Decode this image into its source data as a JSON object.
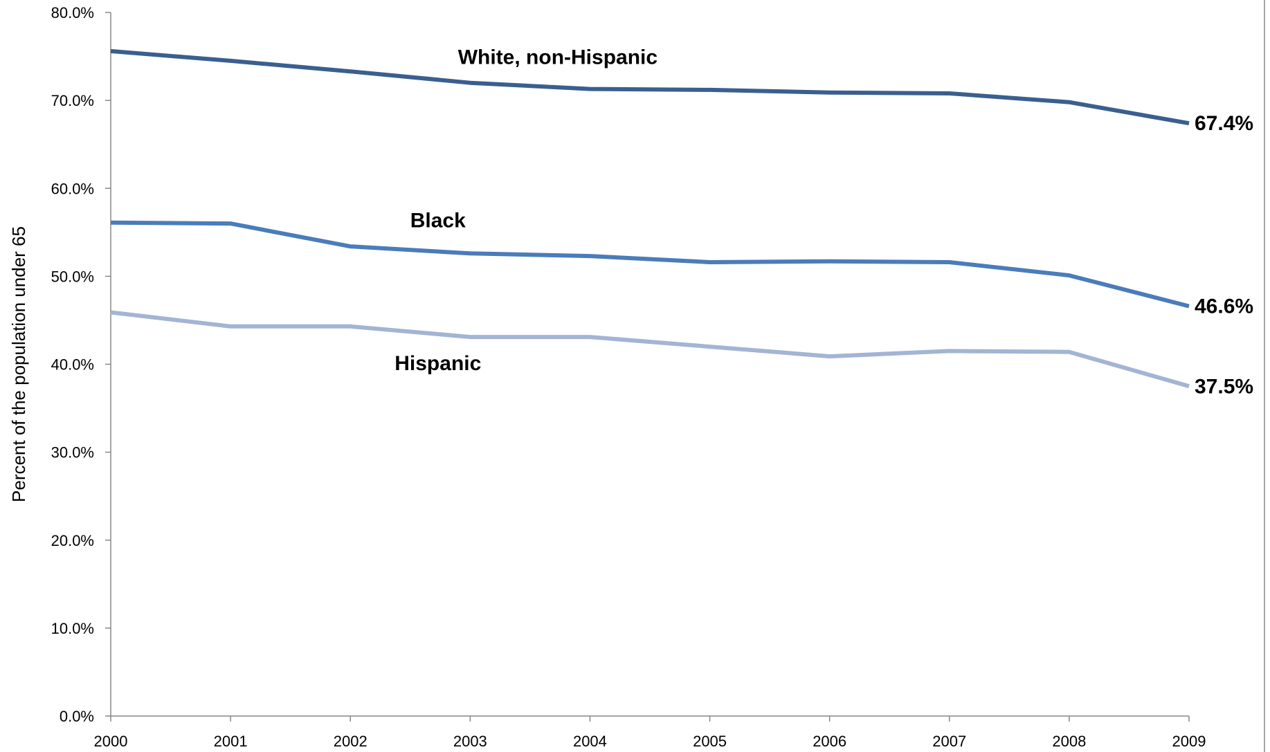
{
  "chart_data": {
    "type": "line",
    "title": "",
    "xlabel": "",
    "ylabel": "Percent of the population under 65",
    "ylim": [
      0,
      80
    ],
    "y_ticks": [
      "0.0%",
      "10.0%",
      "20.0%",
      "30.0%",
      "40.0%",
      "50.0%",
      "60.0%",
      "70.0%",
      "80.0%"
    ],
    "grid": false,
    "legend": "none",
    "categories": [
      "2000",
      "2001",
      "2002",
      "2003",
      "2004",
      "2005",
      "2006",
      "2007",
      "2008",
      "2009"
    ],
    "series": [
      {
        "name": "White, non-Hispanic",
        "color": "#3a5f8f",
        "values": [
          75.6,
          74.5,
          73.3,
          72.0,
          71.3,
          71.2,
          70.9,
          70.8,
          69.8,
          67.4
        ],
        "end_label": "67.4%"
      },
      {
        "name": "Black",
        "color": "#4a7cba",
        "values": [
          56.1,
          56.0,
          53.4,
          52.6,
          52.3,
          51.6,
          51.7,
          51.6,
          50.1,
          46.6
        ],
        "end_label": "46.6%"
      },
      {
        "name": "Hispanic",
        "color": "#a3b4d4",
        "values": [
          45.9,
          44.3,
          44.3,
          43.1,
          43.1,
          42.0,
          40.9,
          41.5,
          41.4,
          37.5
        ],
        "end_label": "37.5%"
      }
    ]
  }
}
